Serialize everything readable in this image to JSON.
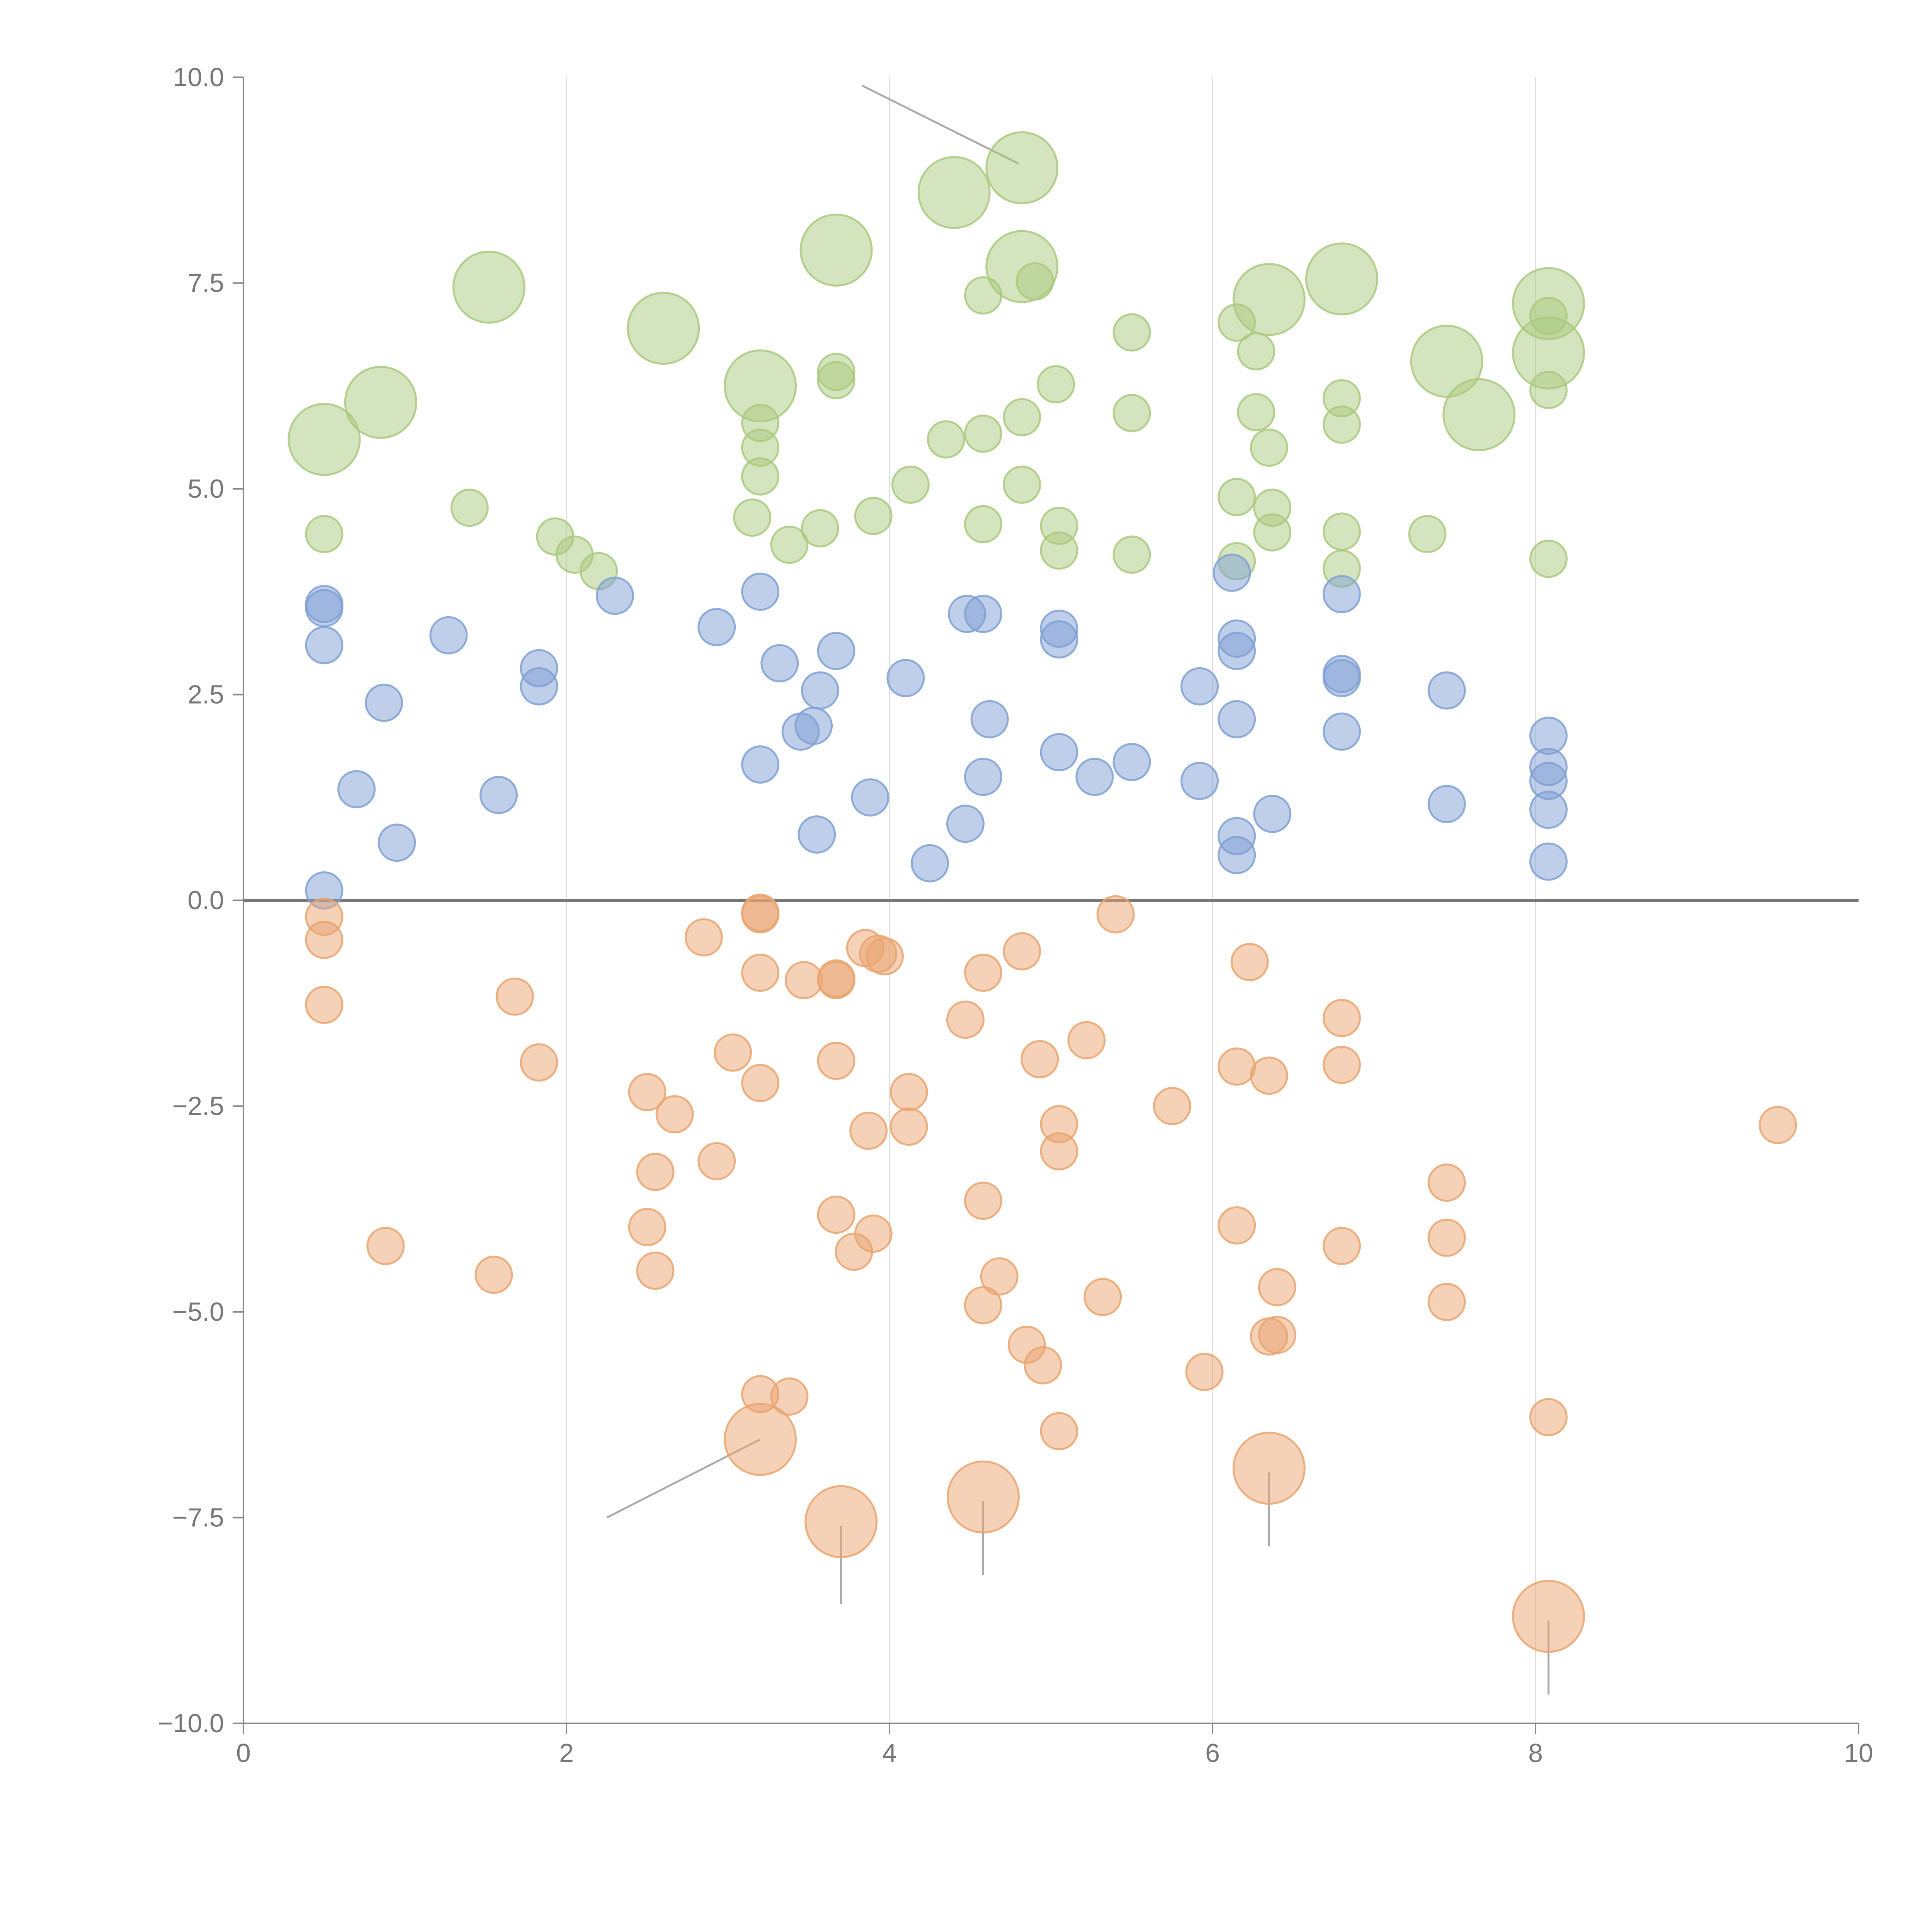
{
  "chart_data": {
    "type": "scatter",
    "title": "",
    "xlabel": "",
    "ylabel": "",
    "xlim": [
      0,
      10
    ],
    "ylim": [
      -10,
      10
    ],
    "x_ticks": [
      0,
      2,
      4,
      6,
      8,
      10
    ],
    "x_tick_labels": [
      "0",
      "2",
      "4",
      "6",
      "8",
      "10"
    ],
    "y_ticks": [
      10,
      7.5,
      5,
      2.5,
      0,
      -2.5,
      -5,
      -7.5,
      -10
    ],
    "y_tick_labels": [
      "10.0",
      "7.5",
      "5.0",
      "2.5",
      "0.0",
      "−2.5",
      "−5.0",
      "−7.5",
      "−10.0"
    ],
    "vertical_grid": true,
    "zero_line": true,
    "colors": {
      "upper": "#a9c97e",
      "middle": "#7fa0d4",
      "lower": "#e9a46f",
      "axis": "#888888",
      "grid": "#dddddd",
      "zero_line": "#777777",
      "leader": "#aaaaaa"
    },
    "series": [
      {
        "key": "upper",
        "points": [
          [
            0.5,
            5.6,
            3
          ],
          [
            0.85,
            6.05,
            3
          ],
          [
            1.52,
            7.45,
            3
          ],
          [
            2.6,
            6.95,
            3
          ],
          [
            3.2,
            6.25,
            3
          ],
          [
            3.67,
            7.9,
            3
          ],
          [
            4.4,
            8.6,
            3
          ],
          [
            4.82,
            8.9,
            3
          ],
          [
            4.82,
            7.7,
            3
          ],
          [
            6.35,
            7.3,
            3
          ],
          [
            6.8,
            7.55,
            3
          ],
          [
            7.45,
            6.55,
            3
          ],
          [
            7.65,
            5.9,
            3
          ],
          [
            8.08,
            7.25,
            3
          ],
          [
            8.08,
            6.65,
            3
          ],
          [
            0.5,
            4.45,
            1
          ],
          [
            1.4,
            4.77,
            1
          ],
          [
            1.93,
            4.42,
            1
          ],
          [
            2.05,
            4.2,
            1
          ],
          [
            2.2,
            4.0,
            1
          ],
          [
            3.2,
            5.8,
            1
          ],
          [
            3.2,
            5.5,
            1
          ],
          [
            3.2,
            5.15,
            1
          ],
          [
            3.15,
            4.65,
            1
          ],
          [
            3.38,
            4.32,
            1
          ],
          [
            3.57,
            4.52,
            1
          ],
          [
            3.67,
            6.42,
            1
          ],
          [
            3.67,
            6.32,
            1
          ],
          [
            3.9,
            4.67,
            1
          ],
          [
            4.13,
            5.05,
            1
          ],
          [
            4.35,
            5.6,
            1
          ],
          [
            4.58,
            7.35,
            1
          ],
          [
            4.58,
            5.67,
            1
          ],
          [
            4.58,
            4.57,
            1
          ],
          [
            4.82,
            5.87,
            1
          ],
          [
            4.82,
            5.05,
            1
          ],
          [
            4.9,
            7.52,
            1
          ],
          [
            5.03,
            6.27,
            1
          ],
          [
            5.05,
            4.55,
            1
          ],
          [
            5.05,
            4.25,
            1
          ],
          [
            5.5,
            6.9,
            1
          ],
          [
            5.5,
            5.92,
            1
          ],
          [
            5.5,
            4.2,
            1
          ],
          [
            6.15,
            7.02,
            1
          ],
          [
            6.15,
            4.9,
            1
          ],
          [
            6.15,
            4.12,
            1
          ],
          [
            6.27,
            6.67,
            1
          ],
          [
            6.27,
            5.93,
            1
          ],
          [
            6.35,
            5.5,
            1
          ],
          [
            6.37,
            4.77,
            1
          ],
          [
            6.37,
            4.47,
            1
          ],
          [
            6.8,
            6.1,
            1
          ],
          [
            6.8,
            5.78,
            1
          ],
          [
            6.8,
            4.48,
            1
          ],
          [
            6.8,
            4.03,
            1
          ],
          [
            7.33,
            4.45,
            1
          ],
          [
            8.08,
            7.1,
            1
          ],
          [
            8.08,
            6.2,
            1
          ],
          [
            8.08,
            4.15,
            1
          ]
        ]
      },
      {
        "key": "middle",
        "points": [
          [
            0.5,
            3.6,
            1
          ],
          [
            0.5,
            3.55,
            1
          ],
          [
            0.5,
            3.1,
            1
          ],
          [
            0.5,
            0.12,
            1
          ],
          [
            0.7,
            1.35,
            1
          ],
          [
            0.87,
            2.4,
            1
          ],
          [
            0.95,
            0.7,
            1
          ],
          [
            1.27,
            3.22,
            1
          ],
          [
            1.58,
            1.28,
            1
          ],
          [
            1.83,
            2.82,
            1
          ],
          [
            1.83,
            2.6,
            1
          ],
          [
            2.3,
            3.7,
            1
          ],
          [
            2.93,
            3.32,
            1
          ],
          [
            3.2,
            3.75,
            1
          ],
          [
            3.2,
            1.65,
            1
          ],
          [
            3.32,
            2.88,
            1
          ],
          [
            3.45,
            2.05,
            1
          ],
          [
            3.53,
            2.12,
            1
          ],
          [
            3.55,
            0.8,
            1
          ],
          [
            3.57,
            2.55,
            1
          ],
          [
            3.67,
            3.03,
            1
          ],
          [
            3.88,
            1.25,
            1
          ],
          [
            4.1,
            2.7,
            1
          ],
          [
            4.25,
            0.45,
            1
          ],
          [
            4.47,
            0.93,
            1
          ],
          [
            4.48,
            3.48,
            1
          ],
          [
            4.58,
            3.48,
            1
          ],
          [
            4.58,
            1.5,
            1
          ],
          [
            4.62,
            2.2,
            1
          ],
          [
            5.05,
            3.3,
            1
          ],
          [
            5.05,
            3.17,
            1
          ],
          [
            5.05,
            1.8,
            1
          ],
          [
            5.27,
            1.5,
            1
          ],
          [
            5.5,
            1.68,
            1
          ],
          [
            5.92,
            2.6,
            1
          ],
          [
            5.92,
            1.45,
            1
          ],
          [
            6.12,
            3.98,
            1
          ],
          [
            6.15,
            3.18,
            1
          ],
          [
            6.15,
            3.03,
            1
          ],
          [
            6.15,
            2.2,
            1
          ],
          [
            6.15,
            0.78,
            1
          ],
          [
            6.15,
            0.55,
            1
          ],
          [
            6.37,
            1.05,
            1
          ],
          [
            6.8,
            3.72,
            1
          ],
          [
            6.8,
            2.75,
            1
          ],
          [
            6.8,
            2.7,
            1
          ],
          [
            6.8,
            2.05,
            1
          ],
          [
            7.45,
            2.55,
            1
          ],
          [
            7.45,
            1.17,
            1
          ],
          [
            8.08,
            2.0,
            1
          ],
          [
            8.08,
            1.62,
            1
          ],
          [
            8.08,
            1.45,
            1
          ],
          [
            8.08,
            1.1,
            1
          ],
          [
            8.08,
            0.47,
            1
          ]
        ]
      },
      {
        "key": "lower",
        "points": [
          [
            0.5,
            -0.2,
            1
          ],
          [
            0.5,
            -0.48,
            1
          ],
          [
            0.5,
            -1.27,
            1
          ],
          [
            0.88,
            -4.2,
            1
          ],
          [
            1.55,
            -4.55,
            1
          ],
          [
            1.68,
            -1.17,
            1
          ],
          [
            1.83,
            -1.97,
            1
          ],
          [
            2.5,
            -2.33,
            1
          ],
          [
            2.5,
            -3.97,
            1
          ],
          [
            2.55,
            -3.3,
            1
          ],
          [
            2.55,
            -4.5,
            1
          ],
          [
            2.67,
            -2.6,
            1
          ],
          [
            2.85,
            -0.45,
            1
          ],
          [
            2.93,
            -3.17,
            1
          ],
          [
            3.03,
            -1.85,
            1
          ],
          [
            3.2,
            -0.15,
            1
          ],
          [
            3.2,
            -0.17,
            1
          ],
          [
            3.2,
            -0.88,
            1
          ],
          [
            3.2,
            -2.22,
            1
          ],
          [
            3.2,
            -6.0,
            1
          ],
          [
            3.38,
            -6.03,
            1
          ],
          [
            3.47,
            -0.97,
            1
          ],
          [
            3.67,
            -0.95,
            1
          ],
          [
            3.67,
            -0.97,
            1
          ],
          [
            3.67,
            -1.95,
            1
          ],
          [
            3.67,
            -3.82,
            1
          ],
          [
            3.78,
            -4.27,
            1
          ],
          [
            3.85,
            -0.58,
            1
          ],
          [
            3.87,
            -2.8,
            1
          ],
          [
            3.9,
            -4.05,
            1
          ],
          [
            3.93,
            -0.65,
            1
          ],
          [
            3.97,
            -0.68,
            1
          ],
          [
            4.12,
            -2.33,
            1
          ],
          [
            4.12,
            -2.75,
            1
          ],
          [
            4.47,
            -1.45,
            1
          ],
          [
            4.58,
            -0.88,
            1
          ],
          [
            4.58,
            -3.65,
            1
          ],
          [
            4.58,
            -4.92,
            1
          ],
          [
            4.68,
            -4.57,
            1
          ],
          [
            4.82,
            -0.62,
            1
          ],
          [
            4.85,
            -5.4,
            1
          ],
          [
            4.93,
            -1.93,
            1
          ],
          [
            4.95,
            -5.65,
            1
          ],
          [
            5.05,
            -2.72,
            1
          ],
          [
            5.05,
            -3.05,
            1
          ],
          [
            5.05,
            -6.45,
            1
          ],
          [
            5.22,
            -1.7,
            1
          ],
          [
            5.32,
            -4.82,
            1
          ],
          [
            5.4,
            -0.17,
            1
          ],
          [
            5.75,
            -2.5,
            1
          ],
          [
            5.95,
            -5.73,
            1
          ],
          [
            6.15,
            -2.02,
            1
          ],
          [
            6.15,
            -3.95,
            1
          ],
          [
            6.23,
            -0.75,
            1
          ],
          [
            6.35,
            -2.13,
            1
          ],
          [
            6.35,
            -5.3,
            1
          ],
          [
            6.4,
            -5.28,
            1
          ],
          [
            6.4,
            -4.7,
            1
          ],
          [
            6.8,
            -1.43,
            1
          ],
          [
            6.8,
            -2.0,
            1
          ],
          [
            6.8,
            -4.2,
            1
          ],
          [
            7.45,
            -3.43,
            1
          ],
          [
            7.45,
            -4.1,
            1
          ],
          [
            7.45,
            -4.88,
            1
          ],
          [
            8.08,
            -6.28,
            1
          ],
          [
            9.5,
            -2.73,
            1
          ],
          [
            3.2,
            -6.55,
            3
          ],
          [
            3.7,
            -7.55,
            3
          ],
          [
            4.58,
            -7.25,
            3
          ],
          [
            6.35,
            -6.9,
            3
          ],
          [
            8.08,
            -8.7,
            3
          ]
        ]
      }
    ],
    "leader_lines": [
      [
        [
          3.83,
          9.9
        ],
        [
          4.8,
          8.95
        ]
      ],
      [
        [
          3.2,
          -6.55
        ],
        [
          2.25,
          -7.5
        ]
      ],
      [
        [
          3.7,
          -7.6
        ],
        [
          3.7,
          -8.55
        ]
      ],
      [
        [
          4.58,
          -7.3
        ],
        [
          4.58,
          -8.2
        ]
      ],
      [
        [
          6.35,
          -6.95
        ],
        [
          6.35,
          -7.85
        ]
      ],
      [
        [
          8.08,
          -8.75
        ],
        [
          8.08,
          -9.65
        ]
      ]
    ]
  }
}
